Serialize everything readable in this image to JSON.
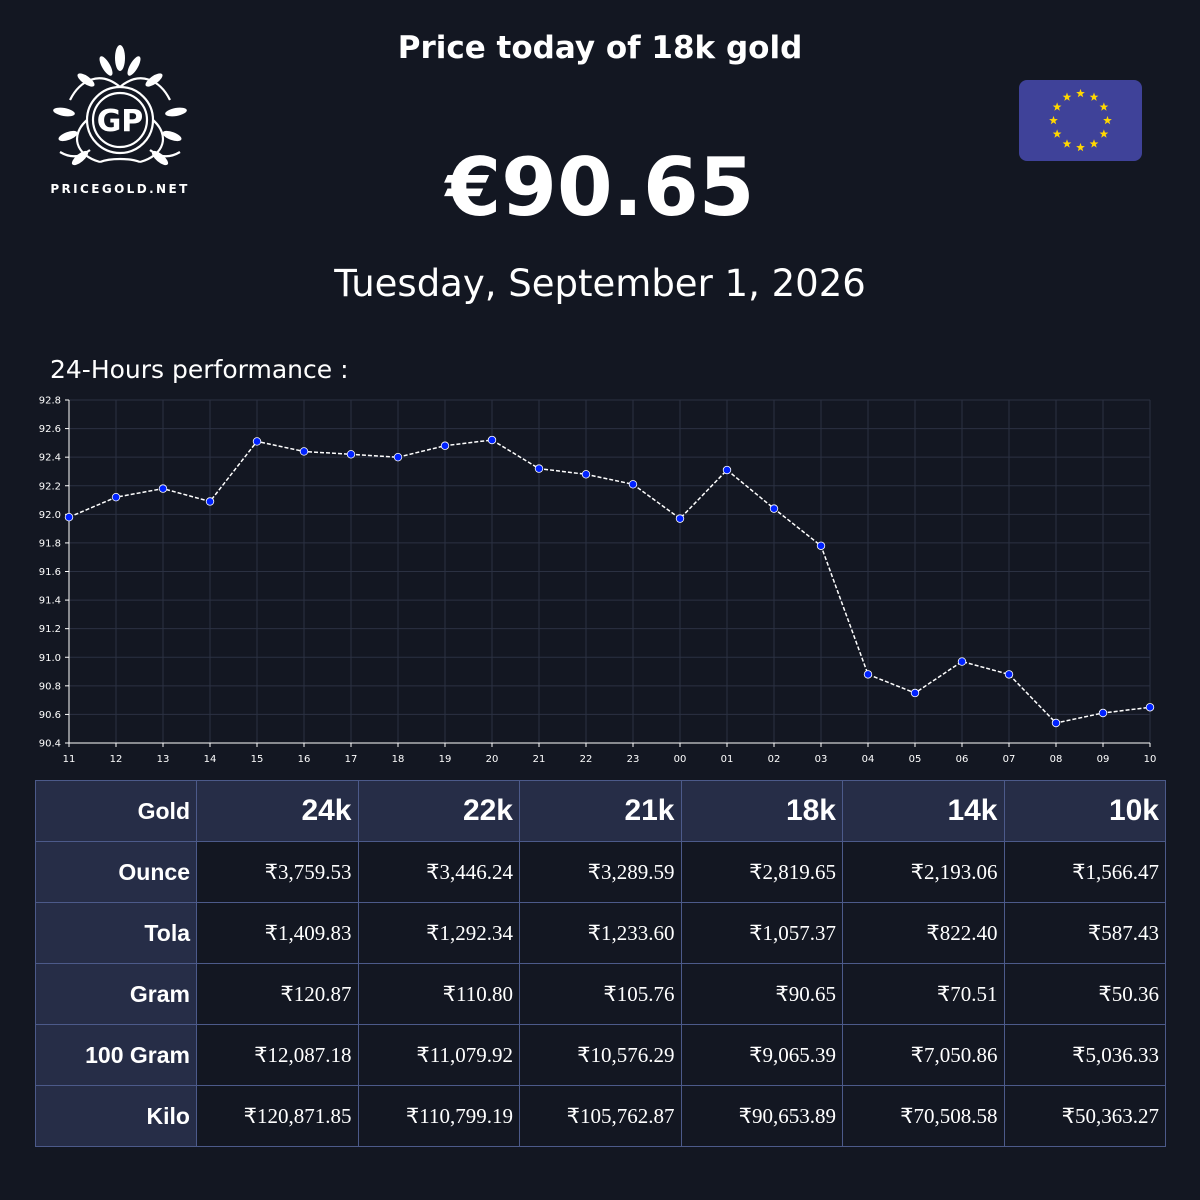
{
  "header": {
    "title": "Price today of 18k gold",
    "price": "€90.65",
    "date": "Tuesday, September 1, 2026"
  },
  "logo": {
    "monogram": "GP",
    "wordmark": "PRICEGOLD.NET"
  },
  "flag": {
    "icon": "eu-flag-icon",
    "background": "#3f4299",
    "star_color": "#ffd700"
  },
  "chart_data": {
    "type": "line",
    "title": "24-Hours performance :",
    "x": [
      "11",
      "12",
      "13",
      "14",
      "15",
      "16",
      "17",
      "18",
      "19",
      "20",
      "21",
      "22",
      "23",
      "00",
      "01",
      "02",
      "03",
      "04",
      "05",
      "06",
      "07",
      "08",
      "09",
      "10"
    ],
    "values": [
      91.98,
      92.12,
      92.18,
      92.09,
      92.51,
      92.44,
      92.42,
      92.4,
      92.48,
      92.52,
      92.32,
      92.28,
      92.21,
      91.97,
      92.31,
      92.04,
      91.78,
      90.88,
      90.75,
      90.97,
      90.88,
      90.54,
      90.61,
      90.65
    ],
    "yticks": [
      "92.8",
      "92.6",
      "92.4",
      "92.2",
      "92.0",
      "91.8",
      "91.6",
      "91.4",
      "91.2",
      "91.0",
      "90.8",
      "90.6",
      "90.4"
    ],
    "ylim": [
      90.4,
      92.8
    ],
    "grid": true,
    "line_color": "#ffffff",
    "marker_color": "#0022ff",
    "grid_color": "#2b3142"
  },
  "table": {
    "corner": "Gold",
    "columns": [
      "24k",
      "22k",
      "21k",
      "18k",
      "14k",
      "10k"
    ],
    "rows": [
      {
        "label": "Ounce",
        "values": [
          "₹3,759.53",
          "₹3,446.24",
          "₹3,289.59",
          "₹2,819.65",
          "₹2,193.06",
          "₹1,566.47"
        ]
      },
      {
        "label": "Tola",
        "values": [
          "₹1,409.83",
          "₹1,292.34",
          "₹1,233.60",
          "₹1,057.37",
          "₹822.40",
          "₹587.43"
        ]
      },
      {
        "label": "Gram",
        "values": [
          "₹120.87",
          "₹110.80",
          "₹105.76",
          "₹90.65",
          "₹70.51",
          "₹50.36"
        ]
      },
      {
        "label": "100 Gram",
        "values": [
          "₹12,087.18",
          "₹11,079.92",
          "₹10,576.29",
          "₹9,065.39",
          "₹7,050.86",
          "₹5,036.33"
        ]
      },
      {
        "label": "Kilo",
        "values": [
          "₹120,871.85",
          "₹110,799.19",
          "₹105,762.87",
          "₹90,653.89",
          "₹70,508.58",
          "₹50,363.27"
        ]
      }
    ]
  }
}
